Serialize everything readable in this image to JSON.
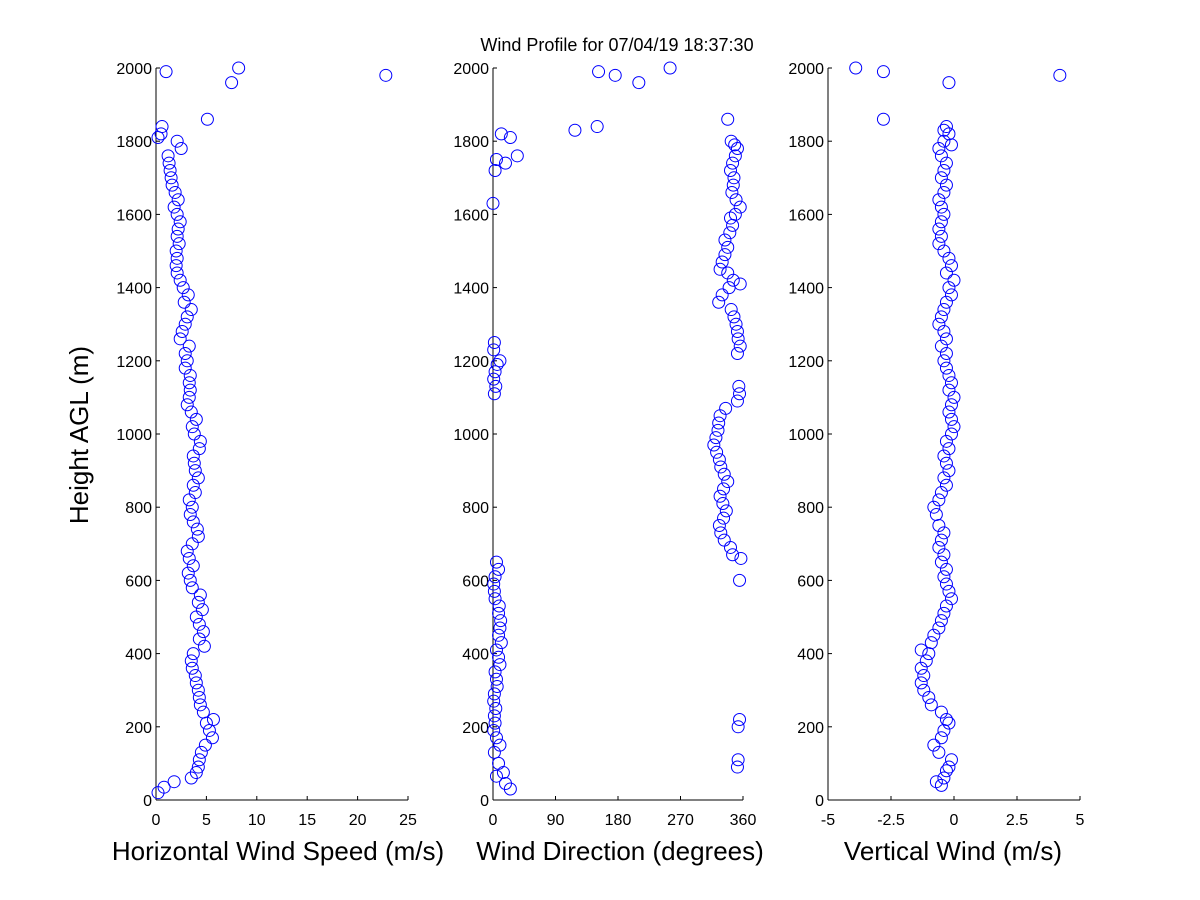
{
  "chart_data": {
    "title": "Wind Profile for  07/04/19 18:37:30",
    "ylabel": "Height AGL (m)",
    "marker_color": "#0000ff",
    "yticks": [
      "0",
      "200",
      "400",
      "600",
      "800",
      "1000",
      "1200",
      "1400",
      "1600",
      "1800",
      "2000"
    ],
    "panels": [
      {
        "type": "scatter",
        "xlabel": "Horizontal Wind Speed (m/s)",
        "xlim": [
          0,
          25
        ],
        "ylim": [
          0,
          2000
        ],
        "xticks": [
          "0",
          "5",
          "10",
          "15",
          "20",
          "25"
        ],
        "points": [
          [
            0.2,
            20
          ],
          [
            0.8,
            35
          ],
          [
            1.8,
            50
          ],
          [
            3.5,
            60
          ],
          [
            4,
            75
          ],
          [
            4.2,
            90
          ],
          [
            4.3,
            110
          ],
          [
            4.5,
            130
          ],
          [
            4.9,
            150
          ],
          [
            5.6,
            170
          ],
          [
            5.3,
            190
          ],
          [
            5,
            210
          ],
          [
            5.7,
            220
          ],
          [
            4.7,
            240
          ],
          [
            4.4,
            260
          ],
          [
            4.3,
            280
          ],
          [
            4.2,
            300
          ],
          [
            4,
            320
          ],
          [
            3.9,
            340
          ],
          [
            3.6,
            360
          ],
          [
            3.5,
            380
          ],
          [
            3.7,
            400
          ],
          [
            4.8,
            420
          ],
          [
            4.3,
            440
          ],
          [
            4.7,
            460
          ],
          [
            4.3,
            480
          ],
          [
            4,
            500
          ],
          [
            4.6,
            520
          ],
          [
            4.2,
            540
          ],
          [
            4.4,
            560
          ],
          [
            3.6,
            580
          ],
          [
            3.4,
            600
          ],
          [
            3.2,
            620
          ],
          [
            3.7,
            640
          ],
          [
            3.3,
            660
          ],
          [
            3.1,
            680
          ],
          [
            3.6,
            700
          ],
          [
            4.2,
            720
          ],
          [
            4.1,
            740
          ],
          [
            3.7,
            760
          ],
          [
            3.4,
            780
          ],
          [
            3.6,
            800
          ],
          [
            3.3,
            820
          ],
          [
            3.9,
            840
          ],
          [
            3.7,
            860
          ],
          [
            4.2,
            880
          ],
          [
            3.9,
            900
          ],
          [
            3.8,
            920
          ],
          [
            3.7,
            940
          ],
          [
            4.3,
            960
          ],
          [
            4.4,
            980
          ],
          [
            3.8,
            1000
          ],
          [
            3.6,
            1020
          ],
          [
            4,
            1040
          ],
          [
            3.5,
            1060
          ],
          [
            3.1,
            1080
          ],
          [
            3.3,
            1100
          ],
          [
            3.4,
            1120
          ],
          [
            3.3,
            1140
          ],
          [
            3.4,
            1160
          ],
          [
            2.9,
            1180
          ],
          [
            3.1,
            1200
          ],
          [
            2.9,
            1220
          ],
          [
            3.3,
            1240
          ],
          [
            2.4,
            1260
          ],
          [
            2.6,
            1280
          ],
          [
            2.9,
            1300
          ],
          [
            3.1,
            1320
          ],
          [
            3.5,
            1340
          ],
          [
            2.8,
            1360
          ],
          [
            3.2,
            1380
          ],
          [
            2.7,
            1400
          ],
          [
            2.4,
            1420
          ],
          [
            2.1,
            1440
          ],
          [
            2,
            1460
          ],
          [
            2.1,
            1480
          ],
          [
            2,
            1500
          ],
          [
            2.3,
            1520
          ],
          [
            2.1,
            1540
          ],
          [
            2.2,
            1560
          ],
          [
            2.4,
            1580
          ],
          [
            2.1,
            1600
          ],
          [
            1.8,
            1620
          ],
          [
            2.2,
            1640
          ],
          [
            1.9,
            1660
          ],
          [
            1.6,
            1680
          ],
          [
            1.5,
            1700
          ],
          [
            1.4,
            1720
          ],
          [
            1.3,
            1740
          ],
          [
            1.2,
            1760
          ],
          [
            2.5,
            1780
          ],
          [
            2.1,
            1800
          ],
          [
            0.5,
            1820
          ],
          [
            0.6,
            1840
          ],
          [
            0.2,
            1810
          ],
          [
            5.1,
            1860
          ],
          [
            7.5,
            1960
          ],
          [
            8.2,
            2000
          ],
          [
            1,
            1990
          ],
          [
            22.8,
            1980
          ]
        ]
      },
      {
        "type": "scatter",
        "xlabel": "Wind Direction (degrees)",
        "xlim": [
          0,
          360
        ],
        "ylim": [
          0,
          2000
        ],
        "xticks": [
          "0",
          "90",
          "180",
          "270",
          "360"
        ],
        "points": [
          [
            25,
            30
          ],
          [
            18,
            45
          ],
          [
            5,
            65
          ],
          [
            15,
            75
          ],
          [
            8,
            100
          ],
          [
            2,
            130
          ],
          [
            10,
            150
          ],
          [
            5,
            170
          ],
          [
            1,
            190
          ],
          [
            3,
            210
          ],
          [
            2,
            230
          ],
          [
            4,
            250
          ],
          [
            1,
            270
          ],
          [
            2,
            290
          ],
          [
            6,
            310
          ],
          [
            5,
            330
          ],
          [
            3,
            350
          ],
          [
            10,
            370
          ],
          [
            8,
            390
          ],
          [
            5,
            410
          ],
          [
            12,
            430
          ],
          [
            8,
            450
          ],
          [
            10,
            470
          ],
          [
            11,
            490
          ],
          [
            8,
            510
          ],
          [
            9,
            530
          ],
          [
            3,
            550
          ],
          [
            2,
            570
          ],
          [
            1,
            590
          ],
          [
            3,
            610
          ],
          [
            8,
            630
          ],
          [
            5,
            650
          ],
          [
            345,
            670
          ],
          [
            342,
            690
          ],
          [
            333,
            710
          ],
          [
            328,
            730
          ],
          [
            326,
            750
          ],
          [
            332,
            770
          ],
          [
            336,
            790
          ],
          [
            331,
            810
          ],
          [
            327,
            830
          ],
          [
            332,
            850
          ],
          [
            338,
            870
          ],
          [
            333,
            890
          ],
          [
            328,
            910
          ],
          [
            326,
            930
          ],
          [
            322,
            950
          ],
          [
            318,
            970
          ],
          [
            321,
            990
          ],
          [
            324,
            1010
          ],
          [
            325,
            1030
          ],
          [
            327,
            1050
          ],
          [
            335,
            1070
          ],
          [
            352,
            1090
          ],
          [
            355,
            1110
          ],
          [
            354,
            1130
          ],
          [
            2,
            1110
          ],
          [
            4,
            1130
          ],
          [
            1,
            1150
          ],
          [
            3,
            1170
          ],
          [
            6,
            1190
          ],
          [
            10,
            1200
          ],
          [
            1,
            1230
          ],
          [
            2,
            1250
          ],
          [
            352,
            1220
          ],
          [
            356,
            1240
          ],
          [
            353,
            1260
          ],
          [
            352,
            1280
          ],
          [
            350,
            1300
          ],
          [
            347,
            1320
          ],
          [
            343,
            1340
          ],
          [
            325,
            1360
          ],
          [
            330,
            1380
          ],
          [
            340,
            1400
          ],
          [
            356,
            1410
          ],
          [
            346,
            1420
          ],
          [
            338,
            1440
          ],
          [
            327,
            1450
          ],
          [
            330,
            1470
          ],
          [
            334,
            1490
          ],
          [
            338,
            1510
          ],
          [
            334,
            1530
          ],
          [
            341,
            1550
          ],
          [
            345,
            1570
          ],
          [
            342,
            1590
          ],
          [
            349,
            1600
          ],
          [
            356,
            1620
          ],
          [
            350,
            1640
          ],
          [
            344,
            1660
          ],
          [
            346,
            1680
          ],
          [
            347,
            1700
          ],
          [
            342,
            1720
          ],
          [
            345,
            1740
          ],
          [
            349,
            1760
          ],
          [
            352,
            1780
          ],
          [
            343,
            1800
          ],
          [
            348,
            1790
          ],
          [
            3,
            1720
          ],
          [
            5,
            1750
          ],
          [
            18,
            1740
          ],
          [
            35,
            1760
          ],
          [
            25,
            1810
          ],
          [
            12,
            1820
          ],
          [
            0,
            1630
          ],
          [
            118,
            1830
          ],
          [
            150,
            1840
          ],
          [
            338,
            1860
          ],
          [
            152,
            1990
          ],
          [
            176,
            1980
          ],
          [
            210,
            1960
          ],
          [
            255,
            2000
          ],
          [
            355,
            600
          ],
          [
            357,
            660
          ],
          [
            353,
            200
          ],
          [
            355,
            220
          ],
          [
            352,
            90
          ],
          [
            353,
            110
          ]
        ]
      },
      {
        "type": "scatter",
        "xlabel": "Vertical Wind (m/s)",
        "xlim": [
          -5,
          5
        ],
        "ylim": [
          0,
          2000
        ],
        "xticks": [
          "-5",
          "-2.5",
          "0",
          "2.5",
          "5"
        ],
        "points": [
          [
            -0.2,
            90
          ],
          [
            -0.1,
            110
          ],
          [
            -0.5,
            40
          ],
          [
            -0.4,
            60
          ],
          [
            -0.3,
            80
          ],
          [
            -0.7,
            50
          ],
          [
            -0.6,
            130
          ],
          [
            -0.8,
            150
          ],
          [
            -0.5,
            170
          ],
          [
            -0.4,
            190
          ],
          [
            -0.2,
            210
          ],
          [
            -0.3,
            220
          ],
          [
            -0.5,
            240
          ],
          [
            -0.9,
            260
          ],
          [
            -1.0,
            280
          ],
          [
            -1.2,
            300
          ],
          [
            -1.3,
            320
          ],
          [
            -1.2,
            340
          ],
          [
            -1.3,
            360
          ],
          [
            -1.1,
            380
          ],
          [
            -1.0,
            400
          ],
          [
            -1.3,
            410
          ],
          [
            -0.9,
            430
          ],
          [
            -0.8,
            450
          ],
          [
            -0.6,
            470
          ],
          [
            -0.5,
            490
          ],
          [
            -0.4,
            510
          ],
          [
            -0.3,
            530
          ],
          [
            -0.1,
            550
          ],
          [
            -0.2,
            570
          ],
          [
            -0.3,
            590
          ],
          [
            -0.4,
            610
          ],
          [
            -0.3,
            630
          ],
          [
            -0.5,
            650
          ],
          [
            -0.4,
            670
          ],
          [
            -0.6,
            690
          ],
          [
            -0.5,
            710
          ],
          [
            -0.4,
            730
          ],
          [
            -0.6,
            750
          ],
          [
            -0.7,
            780
          ],
          [
            -0.8,
            800
          ],
          [
            -0.6,
            820
          ],
          [
            -0.5,
            840
          ],
          [
            -0.3,
            860
          ],
          [
            -0.4,
            880
          ],
          [
            -0.2,
            900
          ],
          [
            -0.3,
            920
          ],
          [
            -0.4,
            940
          ],
          [
            -0.2,
            960
          ],
          [
            -0.3,
            980
          ],
          [
            -0.1,
            1000
          ],
          [
            0.0,
            1020
          ],
          [
            -0.1,
            1040
          ],
          [
            -0.2,
            1060
          ],
          [
            -0.1,
            1080
          ],
          [
            0.0,
            1100
          ],
          [
            -0.2,
            1120
          ],
          [
            -0.1,
            1140
          ],
          [
            -0.2,
            1160
          ],
          [
            -0.3,
            1180
          ],
          [
            -0.4,
            1200
          ],
          [
            -0.3,
            1220
          ],
          [
            -0.5,
            1240
          ],
          [
            -0.3,
            1260
          ],
          [
            -0.4,
            1280
          ],
          [
            -0.6,
            1300
          ],
          [
            -0.5,
            1320
          ],
          [
            -0.4,
            1340
          ],
          [
            -0.3,
            1360
          ],
          [
            -0.1,
            1380
          ],
          [
            -0.2,
            1400
          ],
          [
            0.0,
            1420
          ],
          [
            -0.3,
            1440
          ],
          [
            -0.1,
            1460
          ],
          [
            -0.2,
            1480
          ],
          [
            -0.4,
            1500
          ],
          [
            -0.6,
            1520
          ],
          [
            -0.5,
            1540
          ],
          [
            -0.6,
            1560
          ],
          [
            -0.5,
            1580
          ],
          [
            -0.4,
            1600
          ],
          [
            -0.5,
            1620
          ],
          [
            -0.6,
            1640
          ],
          [
            -0.4,
            1660
          ],
          [
            -0.3,
            1680
          ],
          [
            -0.5,
            1700
          ],
          [
            -0.4,
            1720
          ],
          [
            -0.3,
            1740
          ],
          [
            -0.5,
            1760
          ],
          [
            -0.6,
            1780
          ],
          [
            -0.4,
            1800
          ],
          [
            -0.2,
            1820
          ],
          [
            -0.3,
            1840
          ],
          [
            -0.4,
            1830
          ],
          [
            -0.1,
            1790
          ],
          [
            -2.8,
            1860
          ],
          [
            -3.9,
            2000
          ],
          [
            -2.8,
            1990
          ],
          [
            -0.2,
            1960
          ],
          [
            4.2,
            1980
          ]
        ]
      }
    ]
  }
}
